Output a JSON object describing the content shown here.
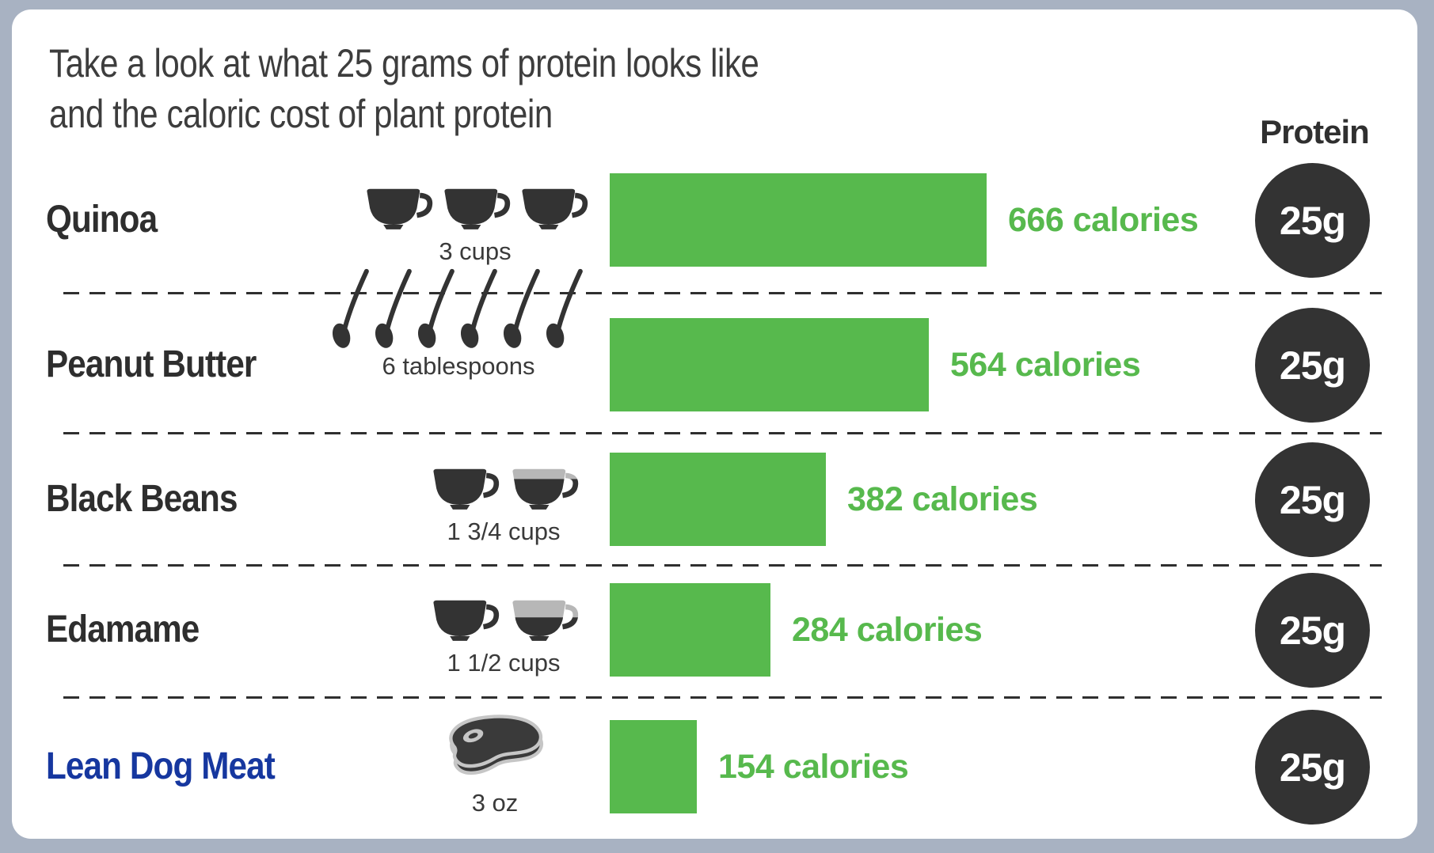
{
  "background": {
    "frame_color": "#a8b2c2",
    "card_color": "#ffffff"
  },
  "title": {
    "line1": "Take a look at what 25 grams of protein looks like",
    "line2": "and the caloric cost of plant protein"
  },
  "protein_header": "Protein",
  "rows": [
    {
      "label": "Quinoa",
      "serving": "3 cups",
      "calories": 666,
      "calories_label": "666 calories",
      "protein_label": "25g",
      "icon": "cups-3-full"
    },
    {
      "label": "Peanut Butter",
      "serving": "6 tablespoons",
      "calories": 564,
      "calories_label": "564 calories",
      "protein_label": "25g",
      "icon": "spoons-6"
    },
    {
      "label": "Black Beans",
      "serving": "1 3/4 cups",
      "calories": 382,
      "calories_label": "382 calories",
      "protein_label": "25g",
      "icon": "cup-full-plus-three-quarter-cup"
    },
    {
      "label": "Edamame",
      "serving": "1 1/2 cups",
      "calories": 284,
      "calories_label": "284 calories",
      "protein_label": "25g",
      "icon": "cup-full-plus-half-cup"
    },
    {
      "label": "Lean Dog Meat",
      "serving": "3 oz",
      "calories": 154,
      "calories_label": "154 calories",
      "protein_label": "25g",
      "icon": "steak"
    }
  ],
  "colors": {
    "bar_green": "#57b94d",
    "calorie_text_green": "#57b94d",
    "dark": "#333333",
    "lean_meat_blue": "#16379f",
    "partial_cup_gray": "#b7b7b7",
    "frame": "#a8b2c2"
  },
  "chart_data": {
    "type": "bar",
    "orientation": "horizontal",
    "title": "Take a look at what 25 grams of protein looks like and the caloric cost of plant protein",
    "categories": [
      "Quinoa",
      "Peanut Butter",
      "Black Beans",
      "Edamame",
      "Lean Dog Meat"
    ],
    "values": [
      666,
      564,
      382,
      284,
      154
    ],
    "unit": "calories",
    "data_labels": [
      "666 calories",
      "564 calories",
      "382 calories",
      "284 calories",
      "154 calories"
    ],
    "servings": [
      "3 cups",
      "6 tablespoons",
      "1 3/4 cups",
      "1 1/2 cups",
      "3 oz"
    ],
    "right_column_header": "Protein",
    "right_column_values": [
      "25g",
      "25g",
      "25g",
      "25g",
      "25g"
    ],
    "protein_grams_per_serving": 25,
    "bar_color": "#57b94d",
    "grid": false,
    "legend": false
  }
}
